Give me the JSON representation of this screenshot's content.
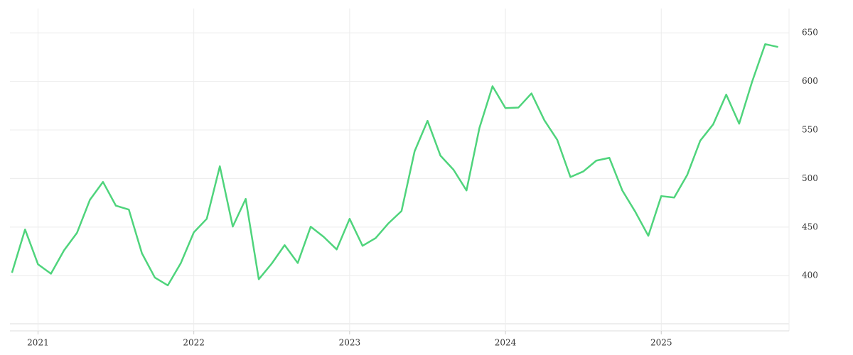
{
  "chart_data": {
    "type": "line",
    "x": [
      2020.833,
      2020.917,
      2021.0,
      2021.083,
      2021.167,
      2021.25,
      2021.333,
      2021.417,
      2021.5,
      2021.583,
      2021.667,
      2021.75,
      2021.833,
      2021.917,
      2022.0,
      2022.083,
      2022.167,
      2022.25,
      2022.333,
      2022.417,
      2022.5,
      2022.583,
      2022.667,
      2022.75,
      2022.833,
      2022.917,
      2023.0,
      2023.083,
      2023.167,
      2023.25,
      2023.333,
      2023.417,
      2023.5,
      2023.583,
      2023.667,
      2023.75,
      2023.833,
      2023.917,
      2024.0,
      2024.083,
      2024.167,
      2024.25,
      2024.333,
      2024.417,
      2024.5,
      2024.583,
      2024.667,
      2024.75,
      2024.833,
      2024.917,
      2025.0,
      2025.083,
      2025.167,
      2025.25,
      2025.333,
      2025.417,
      2025.5,
      2025.583,
      2025.667,
      2025.75
    ],
    "values": [
      403,
      447.5,
      411.7,
      402,
      426,
      444,
      478,
      496.5,
      472,
      468,
      423,
      398,
      390,
      413,
      444.6,
      458.5,
      512.6,
      450.5,
      479,
      396.3,
      412.4,
      431.4,
      413,
      450.4,
      440,
      427,
      458.5,
      430.7,
      438.7,
      454,
      466.5,
      528,
      559.4,
      523.5,
      509,
      487.7,
      552,
      595,
      572.5,
      573,
      587.6,
      559.9,
      539.6,
      501.5,
      507.3,
      518.4,
      521.3,
      487.7,
      465.8,
      441,
      481.9,
      480.4,
      503.8,
      538.9,
      555.7,
      586.4,
      556.4,
      599.6,
      638.3,
      635.4
    ],
    "color": "#4fd47c",
    "xlim": [
      2020.82,
      2025.82
    ],
    "xticks": [
      2021,
      2022,
      2023,
      2024,
      2025
    ],
    "ylim": [
      349,
      675
    ],
    "yticks": [
      400,
      450,
      500,
      550,
      600,
      650
    ],
    "grid": true
  }
}
